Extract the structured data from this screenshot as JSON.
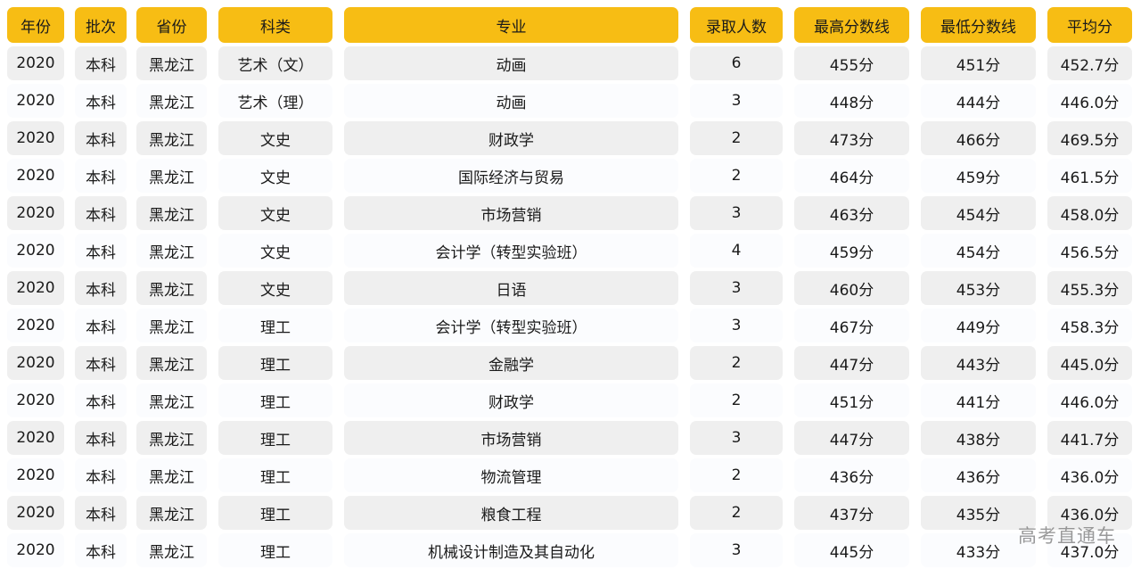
{
  "table": {
    "headers": [
      "年份",
      "批次",
      "省份",
      "科类",
      "专业",
      "录取人数",
      "最高分数线",
      "最低分数线",
      "平均分"
    ],
    "rows": [
      [
        "2020",
        "本科",
        "黑龙江",
        "艺术（文）",
        "动画",
        "6",
        "455分",
        "451分",
        "452.7分"
      ],
      [
        "2020",
        "本科",
        "黑龙江",
        "艺术（理）",
        "动画",
        "3",
        "448分",
        "444分",
        "446.0分"
      ],
      [
        "2020",
        "本科",
        "黑龙江",
        "文史",
        "财政学",
        "2",
        "473分",
        "466分",
        "469.5分"
      ],
      [
        "2020",
        "本科",
        "黑龙江",
        "文史",
        "国际经济与贸易",
        "2",
        "464分",
        "459分",
        "461.5分"
      ],
      [
        "2020",
        "本科",
        "黑龙江",
        "文史",
        "市场营销",
        "3",
        "463分",
        "454分",
        "458.0分"
      ],
      [
        "2020",
        "本科",
        "黑龙江",
        "文史",
        "会计学（转型实验班）",
        "4",
        "459分",
        "454分",
        "456.5分"
      ],
      [
        "2020",
        "本科",
        "黑龙江",
        "文史",
        "日语",
        "3",
        "460分",
        "453分",
        "455.3分"
      ],
      [
        "2020",
        "本科",
        "黑龙江",
        "理工",
        "会计学（转型实验班）",
        "3",
        "467分",
        "449分",
        "458.3分"
      ],
      [
        "2020",
        "本科",
        "黑龙江",
        "理工",
        "金融学",
        "2",
        "447分",
        "443分",
        "445.0分"
      ],
      [
        "2020",
        "本科",
        "黑龙江",
        "理工",
        "财政学",
        "2",
        "451分",
        "441分",
        "446.0分"
      ],
      [
        "2020",
        "本科",
        "黑龙江",
        "理工",
        "市场营销",
        "3",
        "447分",
        "438分",
        "441.7分"
      ],
      [
        "2020",
        "本科",
        "黑龙江",
        "理工",
        "物流管理",
        "2",
        "436分",
        "436分",
        "436.0分"
      ],
      [
        "2020",
        "本科",
        "黑龙江",
        "理工",
        "粮食工程",
        "2",
        "437分",
        "435分",
        "436.0分"
      ],
      [
        "2020",
        "本科",
        "黑龙江",
        "理工",
        "机械设计制造及其自动化",
        "3",
        "445分",
        "433分",
        "437.0分"
      ]
    ]
  },
  "watermark": "高考直通车",
  "colors": {
    "header_bg": "#f7bd14",
    "row_alt_bg": "#efefef",
    "row_bg": "#fbfcfe"
  }
}
